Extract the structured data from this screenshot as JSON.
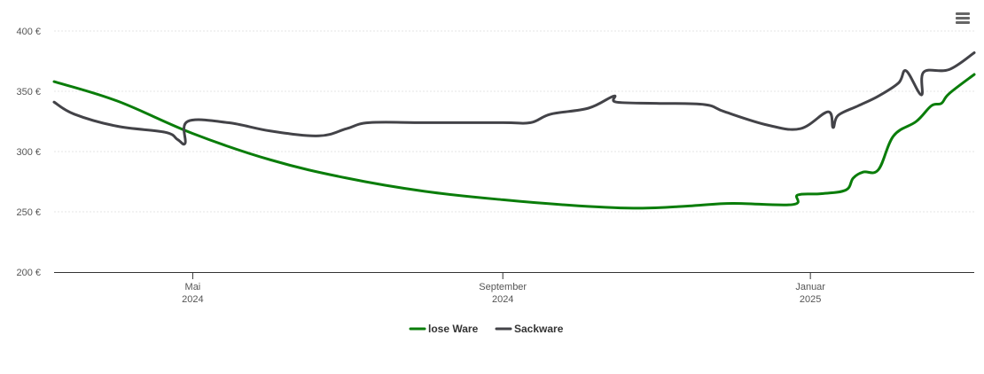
{
  "chart_data": {
    "type": "line",
    "title": "",
    "xlabel": "",
    "ylabel": "",
    "ylim": [
      200,
      400
    ],
    "y_ticks": [
      "200 €",
      "250 €",
      "300 €",
      "350 €",
      "400 €"
    ],
    "y_tick_values": [
      200,
      250,
      300,
      350,
      400
    ],
    "xlim": [
      "2024-03-07",
      "2025-03-07"
    ],
    "x_ticks": [
      {
        "date": "2024-05-01",
        "month": "Mai",
        "year": "2024"
      },
      {
        "date": "2024-09-01",
        "month": "September",
        "year": "2024"
      },
      {
        "date": "2025-01-01",
        "month": "Januar",
        "year": "2025"
      }
    ],
    "grid": true,
    "legend_position": "bottom-center",
    "series": [
      {
        "name": "lose Ware",
        "color": "#0a7d0a",
        "points": [
          [
            "2024-03-07",
            358
          ],
          [
            "2024-04-01",
            342
          ],
          [
            "2024-05-01",
            315
          ],
          [
            "2024-06-01",
            293
          ],
          [
            "2024-07-01",
            278
          ],
          [
            "2024-08-01",
            267
          ],
          [
            "2024-09-01",
            260
          ],
          [
            "2024-10-01",
            255
          ],
          [
            "2024-10-25",
            253
          ],
          [
            "2024-11-15",
            255
          ],
          [
            "2024-12-01",
            257
          ],
          [
            "2024-12-25",
            256
          ],
          [
            "2024-12-27",
            264
          ],
          [
            "2025-01-05",
            265
          ],
          [
            "2025-01-15",
            268
          ],
          [
            "2025-01-18",
            278
          ],
          [
            "2025-01-22",
            283
          ],
          [
            "2025-01-28",
            285
          ],
          [
            "2025-02-03",
            313
          ],
          [
            "2025-02-12",
            325
          ],
          [
            "2025-02-18",
            338
          ],
          [
            "2025-02-22",
            340
          ],
          [
            "2025-02-25",
            348
          ],
          [
            "2025-03-07",
            364
          ]
        ]
      },
      {
        "name": "Sackware",
        "color": "#434348",
        "points": [
          [
            "2024-03-07",
            341
          ],
          [
            "2024-03-15",
            331
          ],
          [
            "2024-04-01",
            321
          ],
          [
            "2024-04-20",
            316
          ],
          [
            "2024-04-25",
            310
          ],
          [
            "2024-04-28",
            307
          ],
          [
            "2024-04-29",
            325
          ],
          [
            "2024-05-15",
            324
          ],
          [
            "2024-06-01",
            317
          ],
          [
            "2024-06-20",
            313
          ],
          [
            "2024-07-01",
            319
          ],
          [
            "2024-07-10",
            324
          ],
          [
            "2024-08-01",
            324
          ],
          [
            "2024-09-01",
            324
          ],
          [
            "2024-09-12",
            324
          ],
          [
            "2024-09-20",
            331
          ],
          [
            "2024-10-05",
            336
          ],
          [
            "2024-10-15",
            346
          ],
          [
            "2024-10-16",
            341
          ],
          [
            "2024-11-01",
            340
          ],
          [
            "2024-11-20",
            339
          ],
          [
            "2024-11-28",
            333
          ],
          [
            "2024-12-15",
            322
          ],
          [
            "2024-12-28",
            319
          ],
          [
            "2025-01-08",
            333
          ],
          [
            "2025-01-10",
            320
          ],
          [
            "2025-01-12",
            330
          ],
          [
            "2025-01-20",
            338
          ],
          [
            "2025-01-28",
            346
          ],
          [
            "2025-02-05",
            357
          ],
          [
            "2025-02-08",
            367
          ],
          [
            "2025-02-14",
            347
          ],
          [
            "2025-02-15",
            366
          ],
          [
            "2025-02-25",
            368
          ],
          [
            "2025-03-07",
            382
          ]
        ]
      }
    ]
  },
  "toolbar": {
    "menu_icon": "hamburger-menu-icon"
  }
}
